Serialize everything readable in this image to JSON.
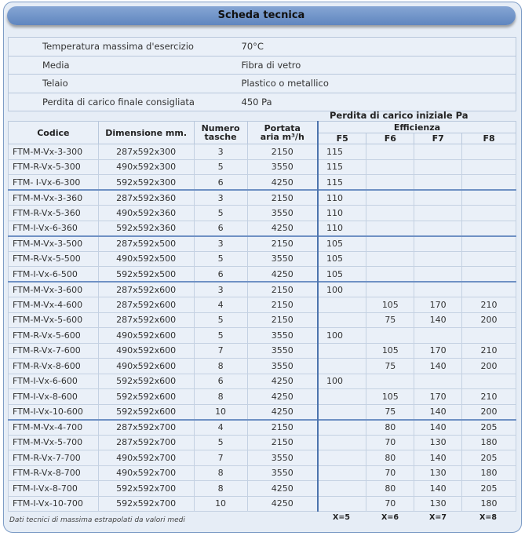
{
  "title": "Scheda tecnica",
  "specs": [
    {
      "label": "Temperatura massima d'esercizio",
      "value": "70°C"
    },
    {
      "label": "Media",
      "value": "Fibra di vetro"
    },
    {
      "label": "Telaio",
      "value": "Plastico o metallico"
    },
    {
      "label": "Perdita di carico finale consigliata",
      "value": "450 Pa"
    }
  ],
  "table": {
    "group_header": "Perdita di carico iniziale Pa",
    "headers": {
      "code": "Codice",
      "dim": "Dimensione mm.",
      "pockets": "Numero tasche",
      "flow": "Portata aria m³/h",
      "efficiency": "Efficienza",
      "f5": "F5",
      "f6": "F6",
      "f7": "F7",
      "f8": "F8"
    },
    "rows": [
      [
        "FTM-M-Vx-3-300",
        "287x592x300",
        "3",
        "2150",
        "115",
        "",
        "",
        ""
      ],
      [
        "FTM-R-Vx-5-300",
        "490x592x300",
        "5",
        "3550",
        "115",
        "",
        "",
        ""
      ],
      [
        "FTM- I-Vx-6-300",
        "592x592x300",
        "6",
        "4250",
        "115",
        "",
        "",
        ""
      ],
      [
        "FTM-M-Vx-3-360",
        "287x592x360",
        "3",
        "2150",
        "110",
        "",
        "",
        ""
      ],
      [
        "FTM-R-Vx-5-360",
        "490x592x360",
        "5",
        "3550",
        "110",
        "",
        "",
        ""
      ],
      [
        "FTM-I-Vx-6-360",
        "592x592x360",
        "6",
        "4250",
        "110",
        "",
        "",
        ""
      ],
      [
        "FTM-M-Vx-3-500",
        "287x592x500",
        "3",
        "2150",
        "105",
        "",
        "",
        ""
      ],
      [
        "FTM-R-Vx-5-500",
        "490x592x500",
        "5",
        "3550",
        "105",
        "",
        "",
        ""
      ],
      [
        "FTM-I-Vx-6-500",
        "592x592x500",
        "6",
        "4250",
        "105",
        "",
        "",
        ""
      ],
      [
        "FTM-M-Vx-3-600",
        "287x592x600",
        "3",
        "2150",
        "100",
        "",
        "",
        ""
      ],
      [
        "FTM-M-Vx-4-600",
        "287x592x600",
        "4",
        "2150",
        "",
        "105",
        "170",
        "210"
      ],
      [
        "FTM-M-Vx-5-600",
        "287x592x600",
        "5",
        "2150",
        "",
        "75",
        "140",
        "200"
      ],
      [
        "FTM-R-Vx-5-600",
        "490x592x600",
        "5",
        "3550",
        "100",
        "",
        "",
        ""
      ],
      [
        "FTM-R-Vx-7-600",
        "490x592x600",
        "7",
        "3550",
        "",
        "105",
        "170",
        "210"
      ],
      [
        "FTM-R-Vx-8-600",
        "490x592x600",
        "8",
        "3550",
        "",
        "75",
        "140",
        "200"
      ],
      [
        "FTM-I-Vx-6-600",
        "592x592x600",
        "6",
        "4250",
        "100",
        "",
        "",
        ""
      ],
      [
        "FTM-I-Vx-8-600",
        "592x592x600",
        "8",
        "4250",
        "",
        "105",
        "170",
        "210"
      ],
      [
        "FTM-I-Vx-10-600",
        "592x592x600",
        "10",
        "4250",
        "",
        "75",
        "140",
        "200"
      ],
      [
        "FTM-M-Vx-4-700",
        "287x592x700",
        "4",
        "2150",
        "",
        "80",
        "140",
        "205"
      ],
      [
        "FTM-M-Vx-5-700",
        "287x592x700",
        "5",
        "2150",
        "",
        "70",
        "130",
        "180"
      ],
      [
        "FTM-R-Vx-7-700",
        "490x592x700",
        "7",
        "3550",
        "",
        "80",
        "140",
        "205"
      ],
      [
        "FTM-R-Vx-8-700",
        "490x592x700",
        "8",
        "3550",
        "",
        "70",
        "130",
        "180"
      ],
      [
        "FTM-I-Vx-8-700",
        "592x592x700",
        "8",
        "4250",
        "",
        "80",
        "140",
        "205"
      ],
      [
        "FTM-I-Vx-10-700",
        "592x592x700",
        "10",
        "4250",
        "",
        "70",
        "130",
        "180"
      ]
    ],
    "x_labels": [
      "X=5",
      "X=6",
      "X=7",
      "X=8"
    ]
  },
  "note": "Dati tecnici di massima estrapolati da valori medi"
}
